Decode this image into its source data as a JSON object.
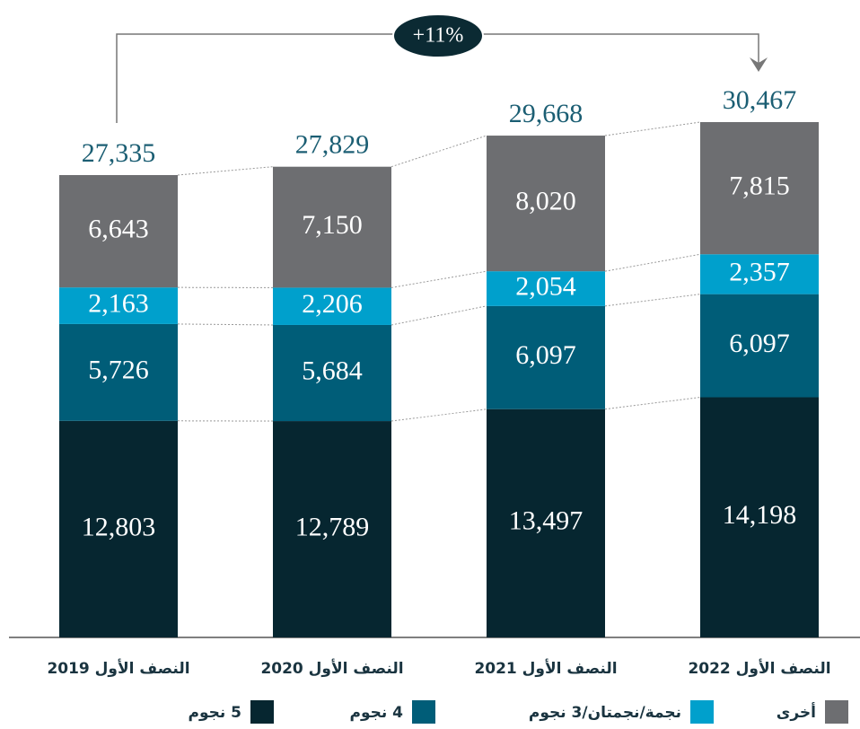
{
  "chart_data": {
    "type": "stacked_bar",
    "categories": [
      "النصف الأول 2019",
      "النصف الأول 2020",
      "النصف الأول 2021",
      "النصف الأول 2022"
    ],
    "series": [
      {
        "name": "5 نجوم",
        "color": "#062630",
        "values": [
          12803,
          12789,
          13497,
          14198
        ],
        "value_labels": [
          "12,803",
          "12,789",
          "13,497",
          "14,198"
        ]
      },
      {
        "name": "4 نجوم",
        "color": "#005d78",
        "values": [
          5726,
          5684,
          6097,
          6097
        ],
        "value_labels": [
          "5,726",
          "5,684",
          "6,097",
          "6,097"
        ]
      },
      {
        "name": "نجمة/نجمتان/3 نجوم",
        "color": "#00a0cc",
        "values": [
          2163,
          2206,
          2054,
          2357
        ],
        "value_labels": [
          "2,163",
          "2,206",
          "2,054",
          "2,357"
        ]
      },
      {
        "name": "أخرى",
        "color": "#6d6e71",
        "values": [
          6643,
          7150,
          8020,
          7815
        ],
        "value_labels": [
          "6,643",
          "7,150",
          "8,020",
          "7,815"
        ]
      }
    ],
    "totals": [
      27335,
      27829,
      29668,
      30467
    ],
    "total_labels": [
      "27,335",
      "27,829",
      "29,668",
      "30,467"
    ],
    "annotation": "+11%"
  }
}
